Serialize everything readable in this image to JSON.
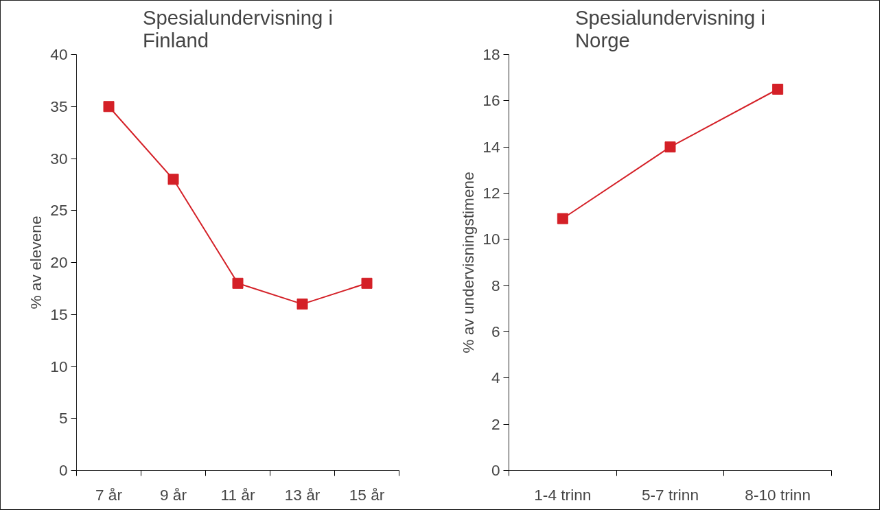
{
  "chart_data": [
    {
      "type": "line",
      "title": "Spesialundervisning i Finland",
      "ylabel": "% av elevene",
      "categories": [
        "7 år",
        "9 år",
        "11 år",
        "13 år",
        "15 år"
      ],
      "series": [
        {
          "color": "#d42027",
          "values": [
            35,
            28,
            18,
            16,
            18
          ]
        }
      ],
      "ylim": [
        0,
        40
      ],
      "yticks": [
        0,
        5,
        10,
        15,
        20,
        25,
        30,
        35,
        40
      ],
      "marker": "square",
      "line_style": "solid",
      "grid": false
    },
    {
      "type": "line",
      "title": "Spesialundervisning i Norge",
      "ylabel": "% av undervisningstimene",
      "categories": [
        "1-4 trinn",
        "5-7 trinn",
        "8-10 trinn"
      ],
      "series": [
        {
          "color": "#d42027",
          "values": [
            10.9,
            14,
            16.5
          ]
        }
      ],
      "ylim": [
        0,
        18
      ],
      "yticks": [
        0,
        2,
        4,
        6,
        8,
        10,
        12,
        14,
        16,
        18
      ],
      "marker": "square",
      "line_style": "solid",
      "grid": false
    }
  ]
}
